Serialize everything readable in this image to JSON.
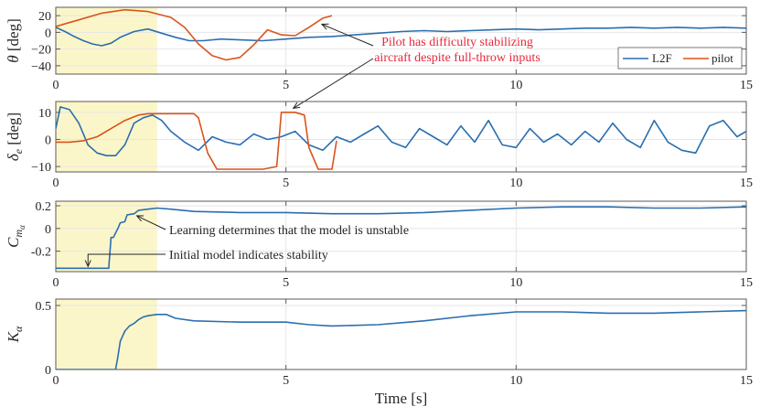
{
  "colors": {
    "l2f": "#2a6eb0",
    "pilot": "#d9541b",
    "highlight": "#fbf6c9",
    "axis": "#5a5a5a",
    "grid": "#e6e6e6",
    "annotation_red": "#e8283c",
    "annotation_dark": "#262626"
  },
  "chart_data": [
    {
      "type": "line",
      "ylabel_sym": "θ",
      "ylabel_unit": "[deg]",
      "xlim": [
        0,
        15
      ],
      "ylim": [
        -50,
        30
      ],
      "yticks": [
        20,
        0,
        -20,
        -40
      ],
      "ytick_labels": [
        "20",
        "0",
        "−20",
        "−40"
      ],
      "xticks": [
        0,
        5,
        10,
        15
      ],
      "xtick_labels": [
        "0",
        "5",
        "10",
        "15"
      ],
      "highlight_x": [
        0,
        2.2
      ],
      "legend": {
        "position": "bottom-right",
        "entries": [
          "L2F",
          "pilot"
        ]
      },
      "annotation": {
        "text_lines": [
          "Pilot has difficulty stabilizing",
          "aircraft despite full-throw inputs"
        ],
        "targets": [
          [
            5.7,
            13
          ],
          [
            5.1,
            11.5
          ]
        ]
      },
      "series": [
        {
          "name": "L2F",
          "x": [
            0,
            0.2,
            0.4,
            0.6,
            0.8,
            1.0,
            1.2,
            1.4,
            1.7,
            2.0,
            2.3,
            2.6,
            2.9,
            3.2,
            3.6,
            4.0,
            4.5,
            5.0,
            5.5,
            6.0,
            6.5,
            7.0,
            7.5,
            8.0,
            8.5,
            9.0,
            9.5,
            10.0,
            10.5,
            11.0,
            11.5,
            12.0,
            12.5,
            13.0,
            13.5,
            14.0,
            14.5,
            15.0
          ],
          "y": [
            6,
            1,
            -5,
            -10,
            -14,
            -16,
            -13,
            -6,
            1,
            4,
            -1,
            -6,
            -10,
            -10,
            -8,
            -9,
            -10,
            -8,
            -6,
            -5,
            -3,
            -1,
            1,
            2,
            1,
            2,
            3,
            4,
            3,
            4,
            5,
            5,
            6,
            5,
            6,
            5,
            6,
            5
          ]
        },
        {
          "name": "pilot",
          "x": [
            0,
            0.5,
            1.0,
            1.5,
            2.0,
            2.5,
            2.8,
            3.1,
            3.4,
            3.7,
            4.0,
            4.3,
            4.6,
            4.9,
            5.2,
            5.5,
            5.8,
            6.0
          ],
          "y": [
            7,
            15,
            23,
            27,
            25,
            18,
            6,
            -14,
            -28,
            -33,
            -30,
            -15,
            3,
            -3,
            -4,
            6,
            17,
            20
          ]
        }
      ]
    },
    {
      "type": "line",
      "ylabel_sym": "δ",
      "ylabel_sub": "e",
      "ylabel_unit": "[deg]",
      "xlim": [
        0,
        15
      ],
      "ylim": [
        -12,
        14
      ],
      "yticks": [
        10,
        0,
        -10
      ],
      "ytick_labels": [
        "10",
        "0",
        "−10"
      ],
      "xticks": [
        0,
        5,
        10,
        15
      ],
      "xtick_labels": [
        "0",
        "5",
        "10",
        "15"
      ],
      "highlight_x": [
        0,
        2.2
      ],
      "series": [
        {
          "name": "L2F",
          "x": [
            0,
            0.1,
            0.3,
            0.5,
            0.7,
            0.9,
            1.1,
            1.3,
            1.5,
            1.7,
            1.9,
            2.1,
            2.3,
            2.5,
            2.8,
            3.1,
            3.4,
            3.7,
            4.0,
            4.3,
            4.6,
            4.9,
            5.2,
            5.5,
            5.8,
            6.1,
            6.4,
            6.7,
            7.0,
            7.3,
            7.6,
            7.9,
            8.2,
            8.5,
            8.8,
            9.1,
            9.4,
            9.7,
            10.0,
            10.3,
            10.6,
            10.9,
            11.2,
            11.5,
            11.8,
            12.1,
            12.4,
            12.7,
            13.0,
            13.3,
            13.6,
            13.9,
            14.2,
            14.5,
            14.8,
            15.0
          ],
          "y": [
            4,
            12,
            11,
            6,
            -2,
            -5,
            -6,
            -6,
            -2,
            6,
            8,
            9,
            7,
            3,
            -1,
            -4,
            1,
            -1,
            -2,
            2,
            0,
            1,
            3,
            -2,
            -4,
            1,
            -1,
            2,
            5,
            -1,
            -3,
            4,
            1,
            -2,
            5,
            -1,
            7,
            -2,
            -3,
            4,
            -1,
            2,
            -2,
            3,
            -1,
            6,
            0,
            -3,
            7,
            -1,
            -4,
            -5,
            5,
            7,
            1,
            3
          ]
        },
        {
          "name": "pilot",
          "x": [
            0,
            0.3,
            0.6,
            0.9,
            1.2,
            1.5,
            1.8,
            2.0,
            2.5,
            3.0,
            3.1,
            3.3,
            3.5,
            4.0,
            4.5,
            4.8,
            4.9,
            5.2,
            5.4,
            5.5,
            5.7,
            6.0,
            6.1
          ],
          "y": [
            -1,
            -1,
            -0.5,
            1,
            4,
            7,
            9,
            9.5,
            9.5,
            9.5,
            8,
            -5,
            -11,
            -11,
            -11,
            -10,
            10,
            10,
            9,
            -3,
            -11,
            -11,
            -0.5
          ]
        }
      ]
    },
    {
      "type": "line",
      "ylabel_sym": "C",
      "ylabel_sub": "m",
      "ylabel_subsub": "α",
      "xlim": [
        0,
        15
      ],
      "ylim": [
        -0.38,
        0.24
      ],
      "yticks": [
        0.2,
        0,
        -0.2
      ],
      "ytick_labels": [
        "0.2",
        "0",
        "-0.2"
      ],
      "xticks": [
        0,
        5,
        10,
        15
      ],
      "xtick_labels": [
        "0",
        "5",
        "10",
        "15"
      ],
      "highlight_x": [
        0,
        2.2
      ],
      "annotations": [
        {
          "text": "Learning determines that the model is unstable",
          "target": [
            1.7,
            0.12
          ]
        },
        {
          "text": "Initial model indicates stability",
          "target": [
            0.7,
            -0.35
          ]
        }
      ],
      "series": [
        {
          "name": "L2F",
          "x": [
            0,
            0.5,
            1.0,
            1.15,
            1.2,
            1.25,
            1.35,
            1.4,
            1.5,
            1.55,
            1.7,
            1.8,
            2.0,
            2.2,
            2.5,
            3.0,
            4.0,
            5.0,
            6.0,
            7.0,
            8.0,
            9.0,
            10.0,
            11.0,
            12.0,
            13.0,
            14.0,
            15.0
          ],
          "y": [
            -0.35,
            -0.35,
            -0.35,
            -0.35,
            -0.08,
            -0.08,
            0.0,
            0.05,
            0.06,
            0.12,
            0.13,
            0.16,
            0.17,
            0.18,
            0.17,
            0.15,
            0.14,
            0.14,
            0.13,
            0.13,
            0.14,
            0.16,
            0.18,
            0.19,
            0.19,
            0.18,
            0.18,
            0.19
          ]
        }
      ]
    },
    {
      "type": "line",
      "ylabel_sym": "K",
      "ylabel_sub": "α",
      "xlim": [
        0,
        15
      ],
      "ylim": [
        0,
        0.55
      ],
      "yticks": [
        0.5,
        0
      ],
      "ytick_labels": [
        "0.5",
        "0"
      ],
      "xticks": [
        0,
        5,
        10,
        15
      ],
      "xtick_labels": [
        "0",
        "5",
        "10",
        "15"
      ],
      "highlight_x": [
        0,
        2.2
      ],
      "xlabel": "Time [s]",
      "series": [
        {
          "name": "L2F",
          "x": [
            0,
            0.5,
            1.0,
            1.3,
            1.35,
            1.4,
            1.5,
            1.6,
            1.7,
            1.8,
            1.9,
            2.0,
            2.2,
            2.4,
            2.6,
            3.0,
            4.0,
            5.0,
            5.5,
            6.0,
            7.0,
            8.0,
            9.0,
            10.0,
            11.0,
            12.0,
            13.0,
            14.0,
            15.0
          ],
          "y": [
            0,
            0,
            0,
            0,
            0.1,
            0.22,
            0.3,
            0.34,
            0.36,
            0.39,
            0.41,
            0.42,
            0.43,
            0.43,
            0.4,
            0.38,
            0.37,
            0.37,
            0.35,
            0.34,
            0.35,
            0.38,
            0.42,
            0.45,
            0.45,
            0.44,
            0.44,
            0.45,
            0.46
          ]
        }
      ]
    }
  ]
}
